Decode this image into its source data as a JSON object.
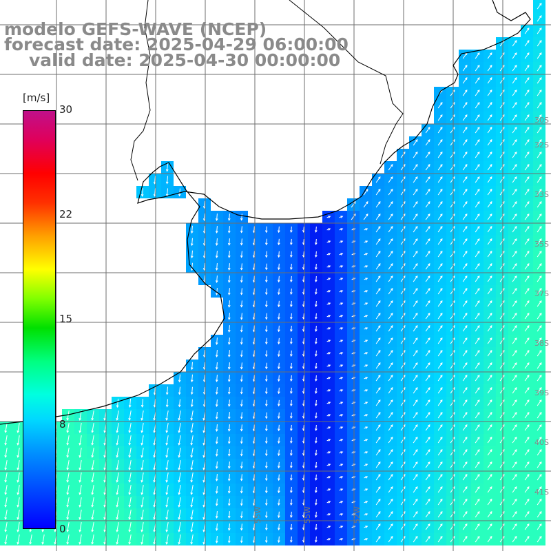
{
  "title": {
    "line1": "modelo GEFS-WAVE (NCEP)",
    "line2": "forecast date: 2025-04-29 06:00:00",
    "line3": "valid date: 2025-04-30 00:00:00"
  },
  "colorbar": {
    "units": "[m/s]",
    "min": 0,
    "max": 30,
    "ticks": [
      "30",
      "22",
      "15",
      "8",
      "0"
    ],
    "tick_values": [
      30,
      22,
      15,
      8,
      0
    ]
  },
  "map": {
    "longitude_labels": [
      "55W",
      "55W",
      "52W"
    ],
    "latitude_labels": [
      "30S",
      "32S",
      "33S",
      "35S",
      "37S",
      "38S",
      "39S",
      "40S",
      "41S"
    ],
    "colors": {
      "land": "#ffffff",
      "coast": "#000000",
      "grid": "#6e6e6e",
      "arrow": "#ffffff",
      "low_wind": "#0022ee",
      "high_wind": "#30ffb0"
    }
  }
}
